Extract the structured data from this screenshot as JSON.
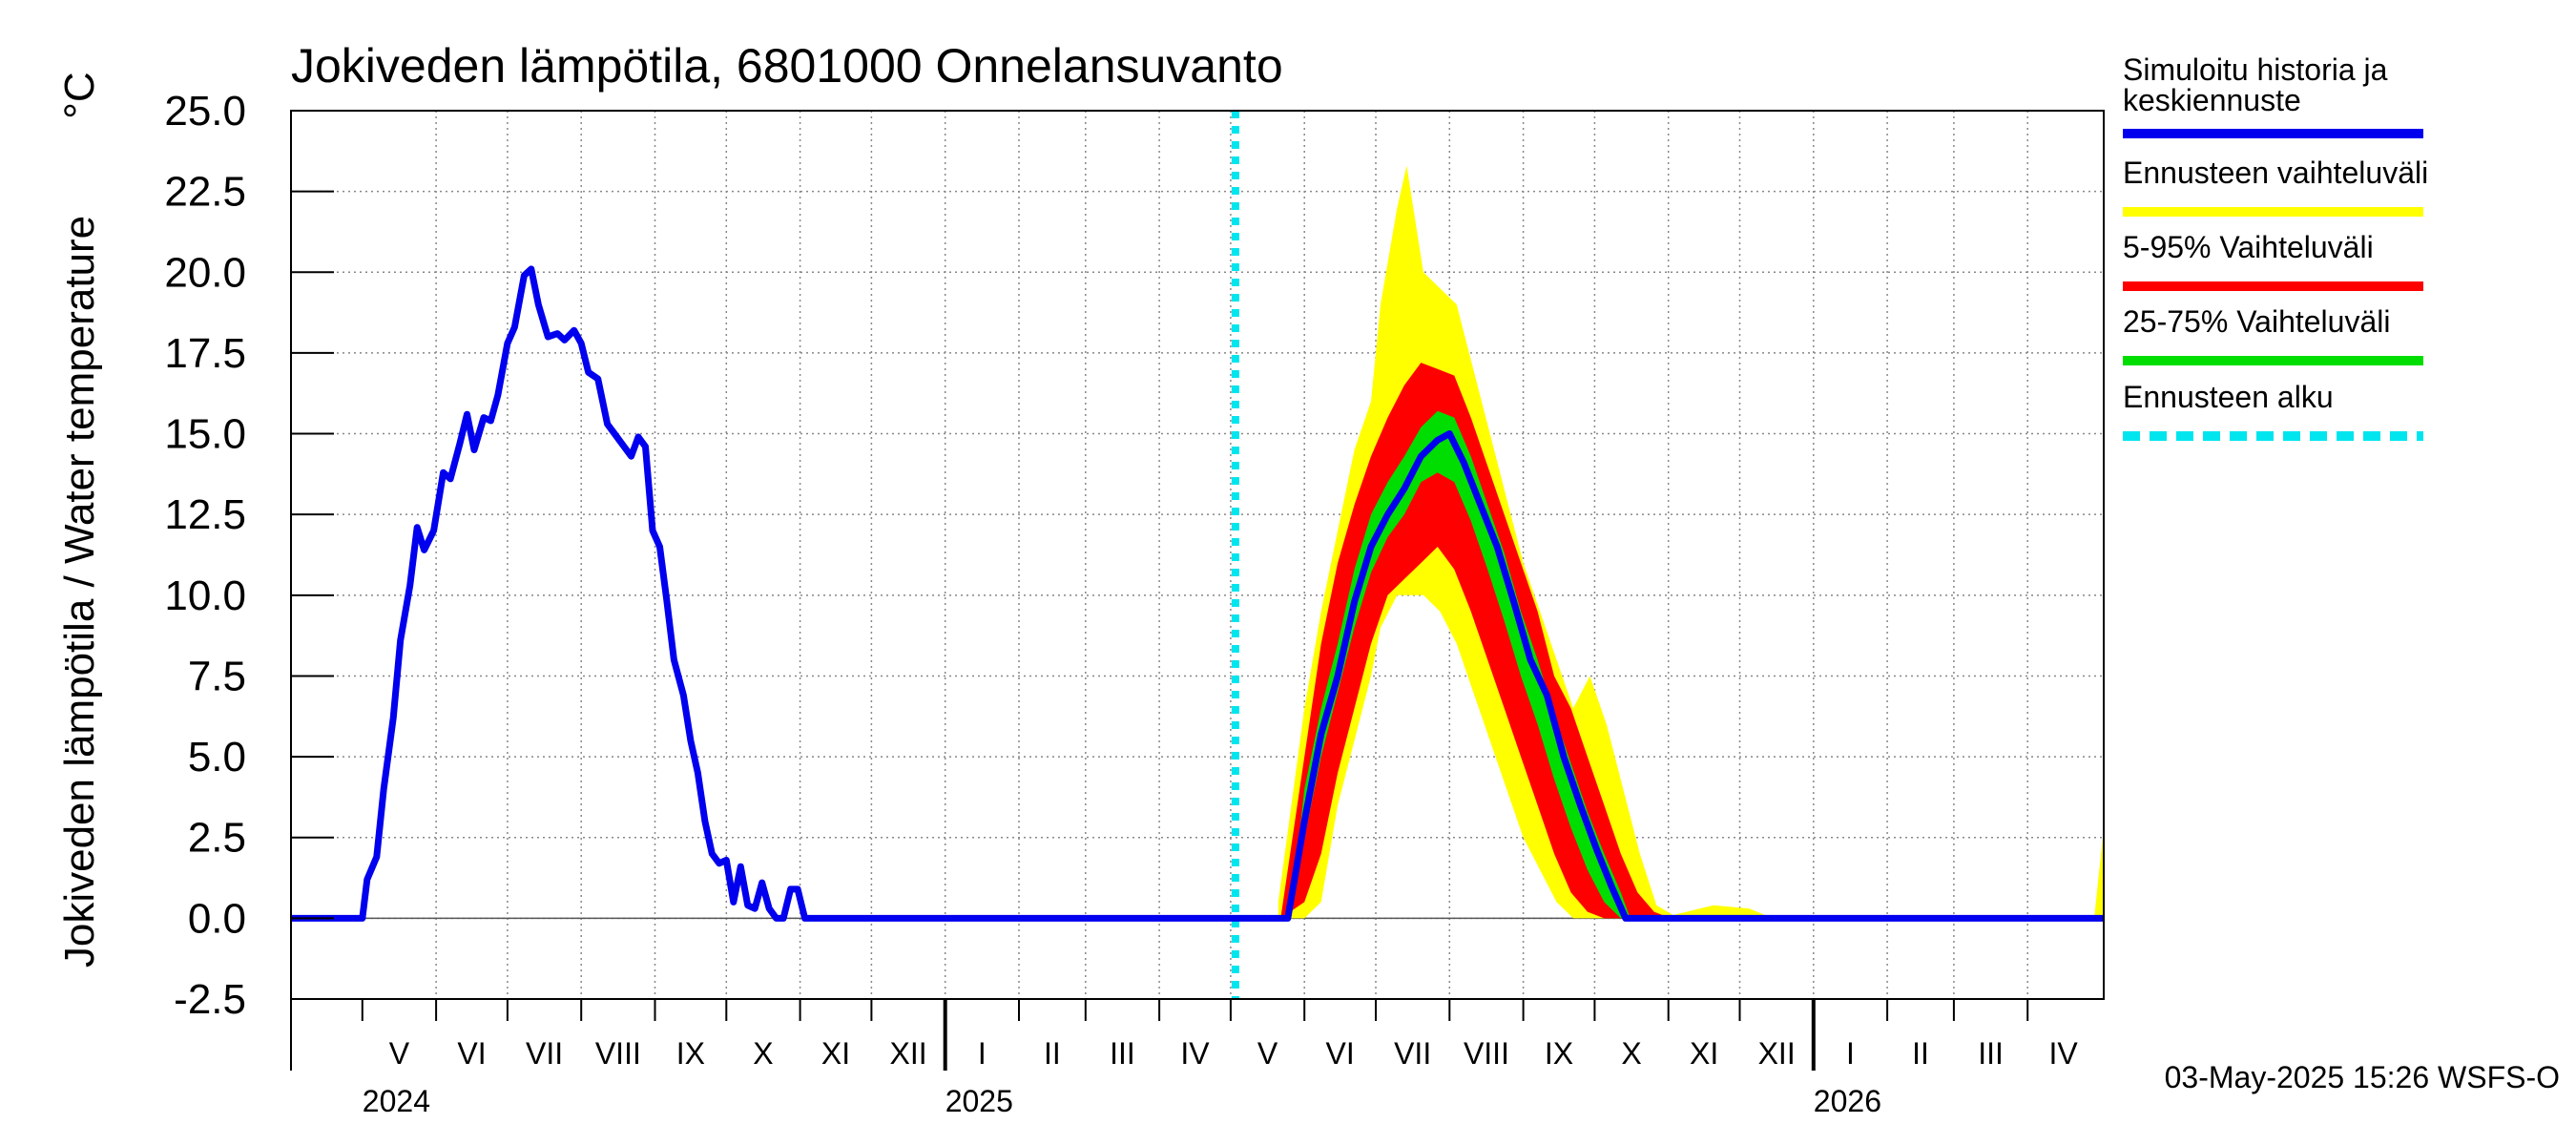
{
  "chart_data": {
    "type": "area",
    "title": "Jokiveden lämpötila, 6801000 Onnelansuvanto",
    "ylabel": "Jokiveden lämpötila / Water temperature",
    "yunit": "°C",
    "ylim": [
      -2.5,
      25.0
    ],
    "yticks": [
      "25.0",
      "22.5",
      "20.0",
      "17.5",
      "15.0",
      "12.5",
      "10.0",
      "7.5",
      "5.0",
      "2.5",
      "0.0",
      "-2.5"
    ],
    "xlim": [
      "2024-04-01",
      "2026-05-03"
    ],
    "grid": true,
    "months": [
      {
        "label": "V",
        "start": "2024-05-01"
      },
      {
        "label": "VI",
        "start": "2024-06-01"
      },
      {
        "label": "VII",
        "start": "2024-07-01"
      },
      {
        "label": "VIII",
        "start": "2024-08-01"
      },
      {
        "label": "IX",
        "start": "2024-09-01"
      },
      {
        "label": "X",
        "start": "2024-10-01"
      },
      {
        "label": "XI",
        "start": "2024-11-01"
      },
      {
        "label": "XII",
        "start": "2024-12-01"
      },
      {
        "label": "I",
        "start": "2025-01-01"
      },
      {
        "label": "II",
        "start": "2025-02-01"
      },
      {
        "label": "III",
        "start": "2025-03-01"
      },
      {
        "label": "IV",
        "start": "2025-04-01"
      },
      {
        "label": "V",
        "start": "2025-05-01"
      },
      {
        "label": "VI",
        "start": "2025-06-01"
      },
      {
        "label": "VII",
        "start": "2025-07-01"
      },
      {
        "label": "VIII",
        "start": "2025-08-01"
      },
      {
        "label": "IX",
        "start": "2025-09-01"
      },
      {
        "label": "X",
        "start": "2025-10-01"
      },
      {
        "label": "XI",
        "start": "2025-11-01"
      },
      {
        "label": "XII",
        "start": "2025-12-01"
      },
      {
        "label": "I",
        "start": "2026-01-01"
      },
      {
        "label": "II",
        "start": "2026-02-01"
      },
      {
        "label": "III",
        "start": "2026-03-01"
      },
      {
        "label": "IV",
        "start": "2026-04-01"
      }
    ],
    "years": [
      {
        "label": "2024",
        "at": "2024-05-01"
      },
      {
        "label": "2025",
        "at": "2025-01-01"
      },
      {
        "label": "2026",
        "at": "2026-01-01"
      }
    ],
    "forecast_start": "2025-05-03",
    "series": [
      {
        "name": "Simuloitu historia ja keskiennuste",
        "color": "#0000ee",
        "points": [
          [
            "2024-04-01",
            0.0
          ],
          [
            "2024-05-01",
            0.0
          ],
          [
            "2024-05-03",
            1.2
          ],
          [
            "2024-05-07",
            1.9
          ],
          [
            "2024-05-10",
            4.0
          ],
          [
            "2024-05-14",
            6.2
          ],
          [
            "2024-05-17",
            8.6
          ],
          [
            "2024-05-21",
            10.3
          ],
          [
            "2024-05-24",
            12.1
          ],
          [
            "2024-05-27",
            11.4
          ],
          [
            "2024-05-31",
            12.0
          ],
          [
            "2024-06-04",
            13.8
          ],
          [
            "2024-06-07",
            13.6
          ],
          [
            "2024-06-11",
            14.7
          ],
          [
            "2024-06-14",
            15.6
          ],
          [
            "2024-06-17",
            14.5
          ],
          [
            "2024-06-21",
            15.5
          ],
          [
            "2024-06-24",
            15.4
          ],
          [
            "2024-06-27",
            16.2
          ],
          [
            "2024-07-01",
            17.8
          ],
          [
            "2024-07-04",
            18.3
          ],
          [
            "2024-07-08",
            19.9
          ],
          [
            "2024-07-11",
            20.1
          ],
          [
            "2024-07-14",
            19.0
          ],
          [
            "2024-07-18",
            18.0
          ],
          [
            "2024-07-22",
            18.1
          ],
          [
            "2024-07-25",
            17.9
          ],
          [
            "2024-07-29",
            18.2
          ],
          [
            "2024-08-01",
            17.8
          ],
          [
            "2024-08-04",
            16.9
          ],
          [
            "2024-08-08",
            16.7
          ],
          [
            "2024-08-12",
            15.3
          ],
          [
            "2024-08-15",
            15.0
          ],
          [
            "2024-08-18",
            14.7
          ],
          [
            "2024-08-22",
            14.3
          ],
          [
            "2024-08-25",
            14.9
          ],
          [
            "2024-08-28",
            14.6
          ],
          [
            "2024-08-31",
            12.0
          ],
          [
            "2024-09-03",
            11.5
          ],
          [
            "2024-09-06",
            9.8
          ],
          [
            "2024-09-09",
            8.0
          ],
          [
            "2024-09-13",
            6.9
          ],
          [
            "2024-09-16",
            5.5
          ],
          [
            "2024-09-19",
            4.5
          ],
          [
            "2024-09-22",
            3.0
          ],
          [
            "2024-09-25",
            2.0
          ],
          [
            "2024-09-28",
            1.7
          ],
          [
            "2024-10-01",
            1.8
          ],
          [
            "2024-10-04",
            0.5
          ],
          [
            "2024-10-07",
            1.6
          ],
          [
            "2024-10-10",
            0.4
          ],
          [
            "2024-10-13",
            0.3
          ],
          [
            "2024-10-16",
            1.1
          ],
          [
            "2024-10-19",
            0.3
          ],
          [
            "2024-10-22",
            0.0
          ],
          [
            "2024-10-25",
            0.0
          ],
          [
            "2024-10-28",
            0.9
          ],
          [
            "2024-10-31",
            0.9
          ],
          [
            "2024-11-03",
            0.0
          ],
          [
            "2024-12-01",
            0.0
          ],
          [
            "2025-05-03",
            0.0
          ],
          [
            "2025-05-25",
            0.0
          ],
          [
            "2025-06-01",
            3.0
          ],
          [
            "2025-06-08",
            5.7
          ],
          [
            "2025-06-15",
            7.5
          ],
          [
            "2025-06-22",
            9.8
          ],
          [
            "2025-06-29",
            11.5
          ],
          [
            "2025-07-06",
            12.5
          ],
          [
            "2025-07-13",
            13.3
          ],
          [
            "2025-07-20",
            14.3
          ],
          [
            "2025-07-27",
            14.8
          ],
          [
            "2025-08-01",
            15.0
          ],
          [
            "2025-08-07",
            14.1
          ],
          [
            "2025-08-14",
            12.8
          ],
          [
            "2025-08-21",
            11.5
          ],
          [
            "2025-08-28",
            9.8
          ],
          [
            "2025-09-04",
            8.0
          ],
          [
            "2025-09-11",
            6.9
          ],
          [
            "2025-09-18",
            5.0
          ],
          [
            "2025-09-25",
            3.5
          ],
          [
            "2025-10-02",
            2.1
          ],
          [
            "2025-10-08",
            1.0
          ],
          [
            "2025-10-14",
            0.0
          ],
          [
            "2026-05-03",
            0.0
          ]
        ]
      },
      {
        "name": "Ennusteen vaihteluväli",
        "color": "#ffff00",
        "band": [
          [
            "2025-05-21",
            0.0,
            0.5
          ],
          [
            "2025-06-01",
            0.0,
            6.5
          ],
          [
            "2025-06-08",
            0.5,
            9.5
          ],
          [
            "2025-06-15",
            3.5,
            12.0
          ],
          [
            "2025-06-22",
            5.5,
            14.5
          ],
          [
            "2025-06-29",
            7.5,
            16.0
          ],
          [
            "2025-07-03",
            9.0,
            19.0
          ],
          [
            "2025-07-10",
            10.0,
            22.0
          ],
          [
            "2025-07-14",
            10.0,
            23.3
          ],
          [
            "2025-07-21",
            10.0,
            20.0
          ],
          [
            "2025-07-28",
            9.5,
            19.5
          ],
          [
            "2025-08-04",
            8.5,
            19.0
          ],
          [
            "2025-08-11",
            7.0,
            17.0
          ],
          [
            "2025-08-18",
            5.5,
            15.0
          ],
          [
            "2025-08-25",
            4.0,
            13.0
          ],
          [
            "2025-09-01",
            2.5,
            11.0
          ],
          [
            "2025-09-08",
            1.5,
            9.5
          ],
          [
            "2025-09-15",
            0.5,
            8.0
          ],
          [
            "2025-09-22",
            0.0,
            6.5
          ],
          [
            "2025-09-29",
            0.0,
            7.5
          ],
          [
            "2025-10-06",
            0.0,
            6.0
          ],
          [
            "2025-10-13",
            0.0,
            4.0
          ],
          [
            "2025-10-20",
            0.0,
            2.0
          ],
          [
            "2025-10-27",
            0.0,
            0.4
          ],
          [
            "2025-11-03",
            0.0,
            0.1
          ],
          [
            "2025-11-20",
            0.0,
            0.4
          ],
          [
            "2025-12-05",
            0.0,
            0.3
          ],
          [
            "2025-12-15",
            0.0,
            0.0
          ],
          [
            "2026-04-29",
            0.0,
            0.0
          ],
          [
            "2026-05-03",
            0.0,
            2.8
          ]
        ]
      },
      {
        "name": "5-95% Vaihteluväli",
        "color": "#ff0000",
        "band": [
          [
            "2025-05-22",
            0.0,
            0.0
          ],
          [
            "2025-06-01",
            0.5,
            5.0
          ],
          [
            "2025-06-08",
            2.0,
            8.5
          ],
          [
            "2025-06-15",
            4.5,
            11.0
          ],
          [
            "2025-06-22",
            6.5,
            12.8
          ],
          [
            "2025-06-29",
            8.5,
            14.3
          ],
          [
            "2025-07-06",
            10.0,
            15.5
          ],
          [
            "2025-07-13",
            10.5,
            16.5
          ],
          [
            "2025-07-20",
            11.0,
            17.2
          ],
          [
            "2025-07-27",
            11.5,
            17.0
          ],
          [
            "2025-08-03",
            10.8,
            16.8
          ],
          [
            "2025-08-10",
            9.5,
            15.5
          ],
          [
            "2025-08-17",
            8.0,
            14.0
          ],
          [
            "2025-08-24",
            6.5,
            12.5
          ],
          [
            "2025-08-31",
            5.0,
            11.0
          ],
          [
            "2025-09-07",
            3.5,
            9.5
          ],
          [
            "2025-09-14",
            2.0,
            7.5
          ],
          [
            "2025-09-21",
            0.8,
            6.5
          ],
          [
            "2025-09-28",
            0.2,
            5.0
          ],
          [
            "2025-10-05",
            0.0,
            3.5
          ],
          [
            "2025-10-12",
            0.0,
            2.0
          ],
          [
            "2025-10-19",
            0.0,
            0.8
          ],
          [
            "2025-10-26",
            0.0,
            0.2
          ],
          [
            "2025-11-02",
            0.0,
            0.0
          ]
        ]
      },
      {
        "name": "25-75% Vaihteluväli",
        "color": "#00dd00",
        "band": [
          [
            "2025-05-26",
            0.0,
            0.0
          ],
          [
            "2025-06-01",
            2.5,
            4.0
          ],
          [
            "2025-06-08",
            5.0,
            6.5
          ],
          [
            "2025-06-15",
            7.0,
            8.5
          ],
          [
            "2025-06-22",
            9.0,
            10.8
          ],
          [
            "2025-06-29",
            10.7,
            12.5
          ],
          [
            "2025-07-06",
            11.8,
            13.5
          ],
          [
            "2025-07-13",
            12.5,
            14.3
          ],
          [
            "2025-07-20",
            13.5,
            15.2
          ],
          [
            "2025-07-27",
            13.8,
            15.7
          ],
          [
            "2025-08-03",
            13.5,
            15.5
          ],
          [
            "2025-08-10",
            12.3,
            14.3
          ],
          [
            "2025-08-17",
            10.8,
            12.8
          ],
          [
            "2025-08-24",
            9.2,
            11.3
          ],
          [
            "2025-08-31",
            7.5,
            9.5
          ],
          [
            "2025-09-07",
            6.0,
            8.0
          ],
          [
            "2025-09-14",
            4.3,
            6.3
          ],
          [
            "2025-09-21",
            2.8,
            4.8
          ],
          [
            "2025-09-28",
            1.5,
            3.3
          ],
          [
            "2025-10-05",
            0.5,
            2.0
          ],
          [
            "2025-10-12",
            0.0,
            0.8
          ],
          [
            "2025-10-16",
            0.0,
            0.0
          ]
        ]
      },
      {
        "name": "Ennusteen alku",
        "color": "#00e5ee"
      }
    ]
  },
  "legend": [
    {
      "label": "Simuloitu historia ja keskiennuste",
      "color": "#0000ee",
      "style": "solid"
    },
    {
      "label": "Ennusteen vaihteluväli",
      "color": "#ffff00",
      "style": "solid"
    },
    {
      "label": "5-95% Vaihteluväli",
      "color": "#ff0000",
      "style": "solid"
    },
    {
      "label": "25-75% Vaihteluväli",
      "color": "#00dd00",
      "style": "solid"
    },
    {
      "label": "Ennusteen alku",
      "color": "#00e5ee",
      "style": "dashed"
    }
  ],
  "footer": "03-May-2025 15:26 WSFS-O"
}
